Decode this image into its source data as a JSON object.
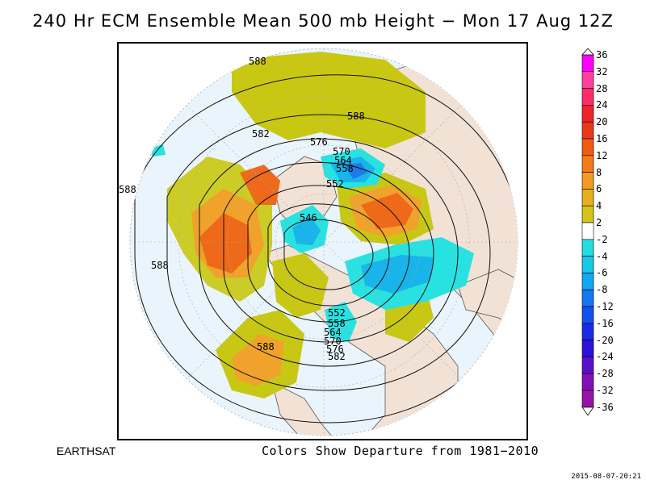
{
  "title": "240 Hr ECM Ensemble Mean 500 mb Height − Mon 17 Aug 12Z",
  "brand": "EARTHSAT",
  "footnote": "Colors Show Departure from 1981−2010",
  "timestamp": "2015-08-07-20:21",
  "legend": {
    "levels": [
      "36",
      "32",
      "28",
      "24",
      "20",
      "16",
      "12",
      "8",
      "6",
      "4",
      "2",
      "-2",
      "-4",
      "-6",
      "-8",
      "-12",
      "-16",
      "-20",
      "-24",
      "-28",
      "-32",
      "-36"
    ],
    "colors": [
      "#ff00ff",
      "#ff3fa0",
      "#ff2a6a",
      "#f0222a",
      "#e83a14",
      "#f05a14",
      "#f47a1a",
      "#f49a22",
      "#e4b01e",
      "#d4c41a",
      "#ffffff",
      "#22dede",
      "#14c8e8",
      "#10a8f0",
      "#1478f0",
      "#1450f0",
      "#1a2ae8",
      "#2a12d8",
      "#5a10c8",
      "#8210b8",
      "#9a10a8"
    ],
    "band_note": ""
  },
  "contour_labels": [
    "588",
    "588",
    "582",
    "576",
    "570",
    "564",
    "558",
    "552",
    "546",
    "588",
    "588",
    "588",
    "552",
    "558",
    "564",
    "570",
    "576",
    "582"
  ],
  "colors": {
    "ocean": "#eaf4fc",
    "land": "#f2e2d6",
    "positive_weak": "#c8c814",
    "positive_mid": "#f0a22a",
    "positive_strong": "#ee6a1a",
    "negative_weak": "#28e2e2",
    "negative_mid": "#18b4ea",
    "negative_strong": "#1e7ae8"
  }
}
